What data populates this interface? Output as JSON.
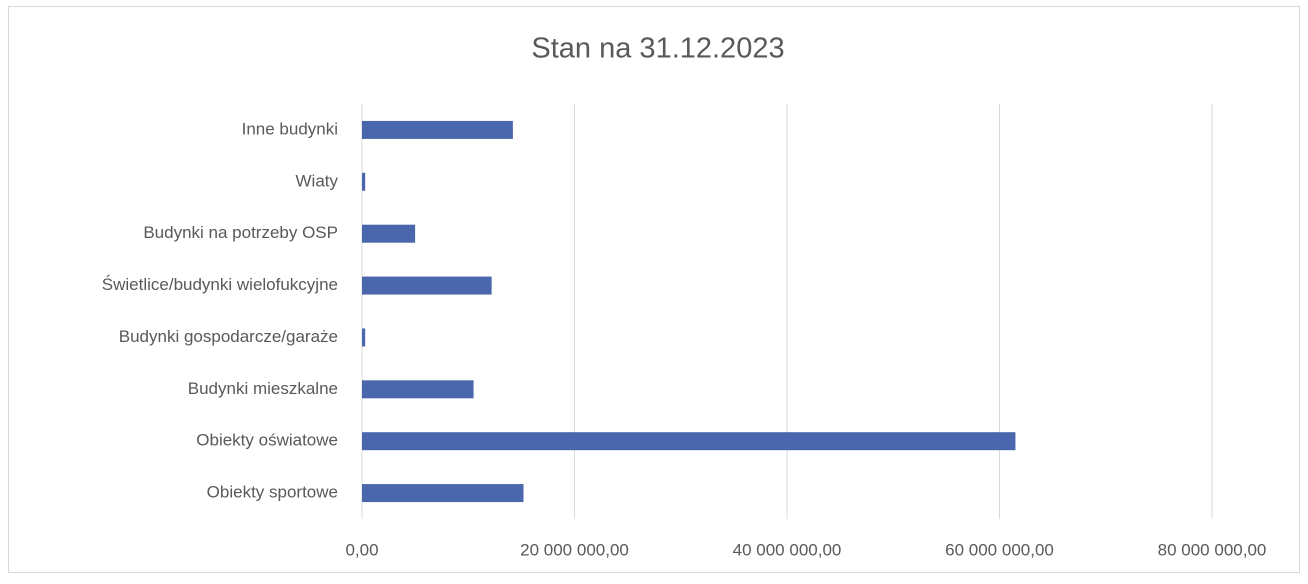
{
  "chart_data": {
    "type": "barh",
    "title": "Stan na 31.12.2023",
    "categories": [
      "Inne budynki",
      "Wiaty",
      "Budynki na potrzeby OSP",
      "Świetlice/budynki wielofukcyjne",
      "Budynki gospodarcze/garaże",
      "Budynki mieszkalne",
      "Obiekty oświatowe",
      "Obiekty sportowe"
    ],
    "values": [
      14200000,
      300000,
      5000000,
      12200000,
      300000,
      10500000,
      61500000,
      15200000
    ],
    "color": "#4a66ac",
    "xlim": [
      0,
      80000000
    ],
    "xticks": [
      {
        "value": 0,
        "label": "0,00"
      },
      {
        "value": 20000000,
        "label": "20 000 000,00"
      },
      {
        "value": 40000000,
        "label": "40 000 000,00"
      },
      {
        "value": 60000000,
        "label": "60 000 000,00"
      },
      {
        "value": 80000000,
        "label": "80 000 000,00"
      }
    ],
    "grid": true
  }
}
